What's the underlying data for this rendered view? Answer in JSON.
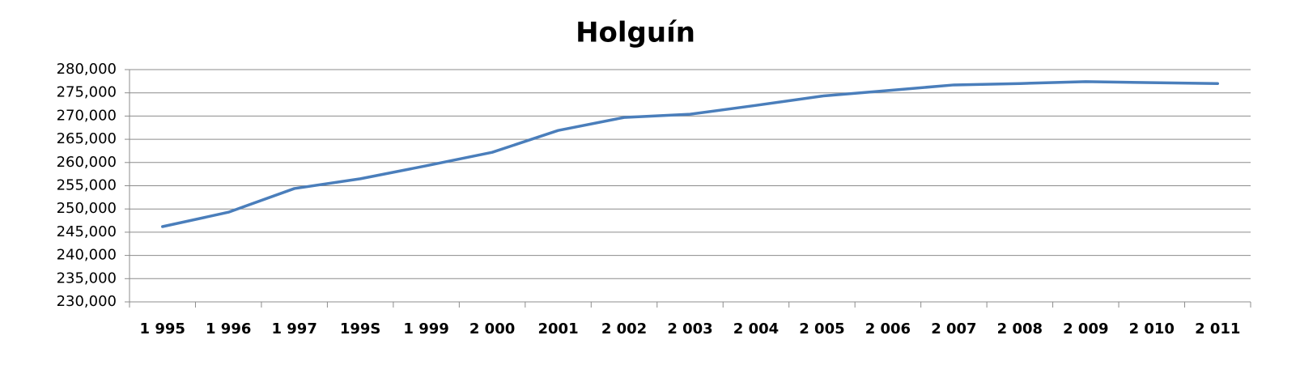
{
  "chart_data": {
    "type": "line",
    "title": "Holguín",
    "categories": [
      "1 995",
      "1 996",
      "1 997",
      "199S",
      "1 999",
      "2 000",
      "2001",
      "2 002",
      "2 003",
      "2 004",
      "2 005",
      "2 006",
      "2 007",
      "2 008",
      "2 009",
      "2 010",
      "2 011"
    ],
    "series": [
      {
        "name": "Holguín",
        "color": "#4a7ebb",
        "values": [
          246200,
          249300,
          254400,
          256500,
          259300,
          262200,
          266900,
          269700,
          270400,
          272300,
          274300,
          275500,
          276700,
          277000,
          277400,
          277200,
          277000
        ]
      }
    ],
    "ylim": [
      230000,
      280000
    ],
    "yticks": [
      {
        "value": 230000,
        "label": "230,000"
      },
      {
        "value": 235000,
        "label": "235,000"
      },
      {
        "value": 240000,
        "label": "240,000"
      },
      {
        "value": 245000,
        "label": "245,000"
      },
      {
        "value": 250000,
        "label": "250,000"
      },
      {
        "value": 255000,
        "label": "255,000"
      },
      {
        "value": 260000,
        "label": "260,000"
      },
      {
        "value": 265000,
        "label": "265,000"
      },
      {
        "value": 270000,
        "label": "270,000"
      },
      {
        "value": 275000,
        "label": "275,000"
      },
      {
        "value": 280000,
        "label": "280,000"
      }
    ],
    "grid": true
  }
}
